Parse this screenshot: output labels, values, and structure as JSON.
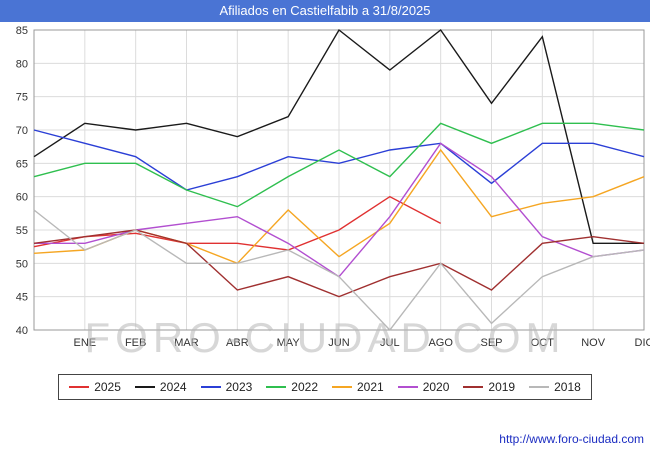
{
  "header": {
    "title": "Afiliados en Castielfabib a 31/8/2025",
    "bg_color": "#4a74d4"
  },
  "watermark": "FORO-CIUDAD.COM",
  "footer": {
    "url": "http://www.foro-ciudad.com"
  },
  "chart_data": {
    "type": "line",
    "title": "Afiliados en Castielfabib a 31/8/2025",
    "xlabel": "",
    "ylabel": "",
    "ylim": [
      40,
      85
    ],
    "ytick_step": 5,
    "grid": true,
    "legend_position": "bottom",
    "categories": [
      "",
      "ENE",
      "FEB",
      "MAR",
      "ABR",
      "MAY",
      "JUN",
      "JUL",
      "AGO",
      "SEP",
      "OCT",
      "NOV",
      "DIC"
    ],
    "series": [
      {
        "name": "2025",
        "color": "#e03131",
        "values": [
          52.5,
          54,
          54.5,
          53,
          53,
          52,
          55,
          60,
          56,
          null,
          null,
          null,
          null
        ]
      },
      {
        "name": "2024",
        "color": "#1a1a1a",
        "values": [
          66,
          71,
          70,
          71,
          69,
          72,
          85,
          79,
          85,
          74,
          84,
          53,
          53
        ]
      },
      {
        "name": "2023",
        "color": "#2b3fd6",
        "values": [
          70,
          68,
          66,
          61,
          63,
          66,
          65,
          67,
          68,
          62,
          68,
          68,
          66
        ]
      },
      {
        "name": "2022",
        "color": "#2fbf4f",
        "values": [
          63,
          65,
          65,
          61,
          58.5,
          63,
          67,
          63,
          71,
          68,
          71,
          71,
          70
        ]
      },
      {
        "name": "2021",
        "color": "#f5a623",
        "values": [
          51.5,
          52,
          55,
          53,
          50,
          58,
          51,
          56,
          67,
          57,
          59,
          60,
          63
        ]
      },
      {
        "name": "2020",
        "color": "#b24fd0",
        "values": [
          53,
          53,
          55,
          56,
          57,
          53,
          48,
          57,
          68,
          63,
          54,
          51,
          52
        ]
      },
      {
        "name": "2019",
        "color": "#a03030",
        "values": [
          53,
          54,
          55,
          53,
          46,
          48,
          45,
          48,
          50,
          46,
          53,
          54,
          53
        ]
      },
      {
        "name": "2018",
        "color": "#b8b8b8",
        "values": [
          58,
          52,
          55,
          50,
          50,
          52,
          48,
          40,
          50,
          41,
          48,
          51,
          52
        ]
      }
    ]
  }
}
